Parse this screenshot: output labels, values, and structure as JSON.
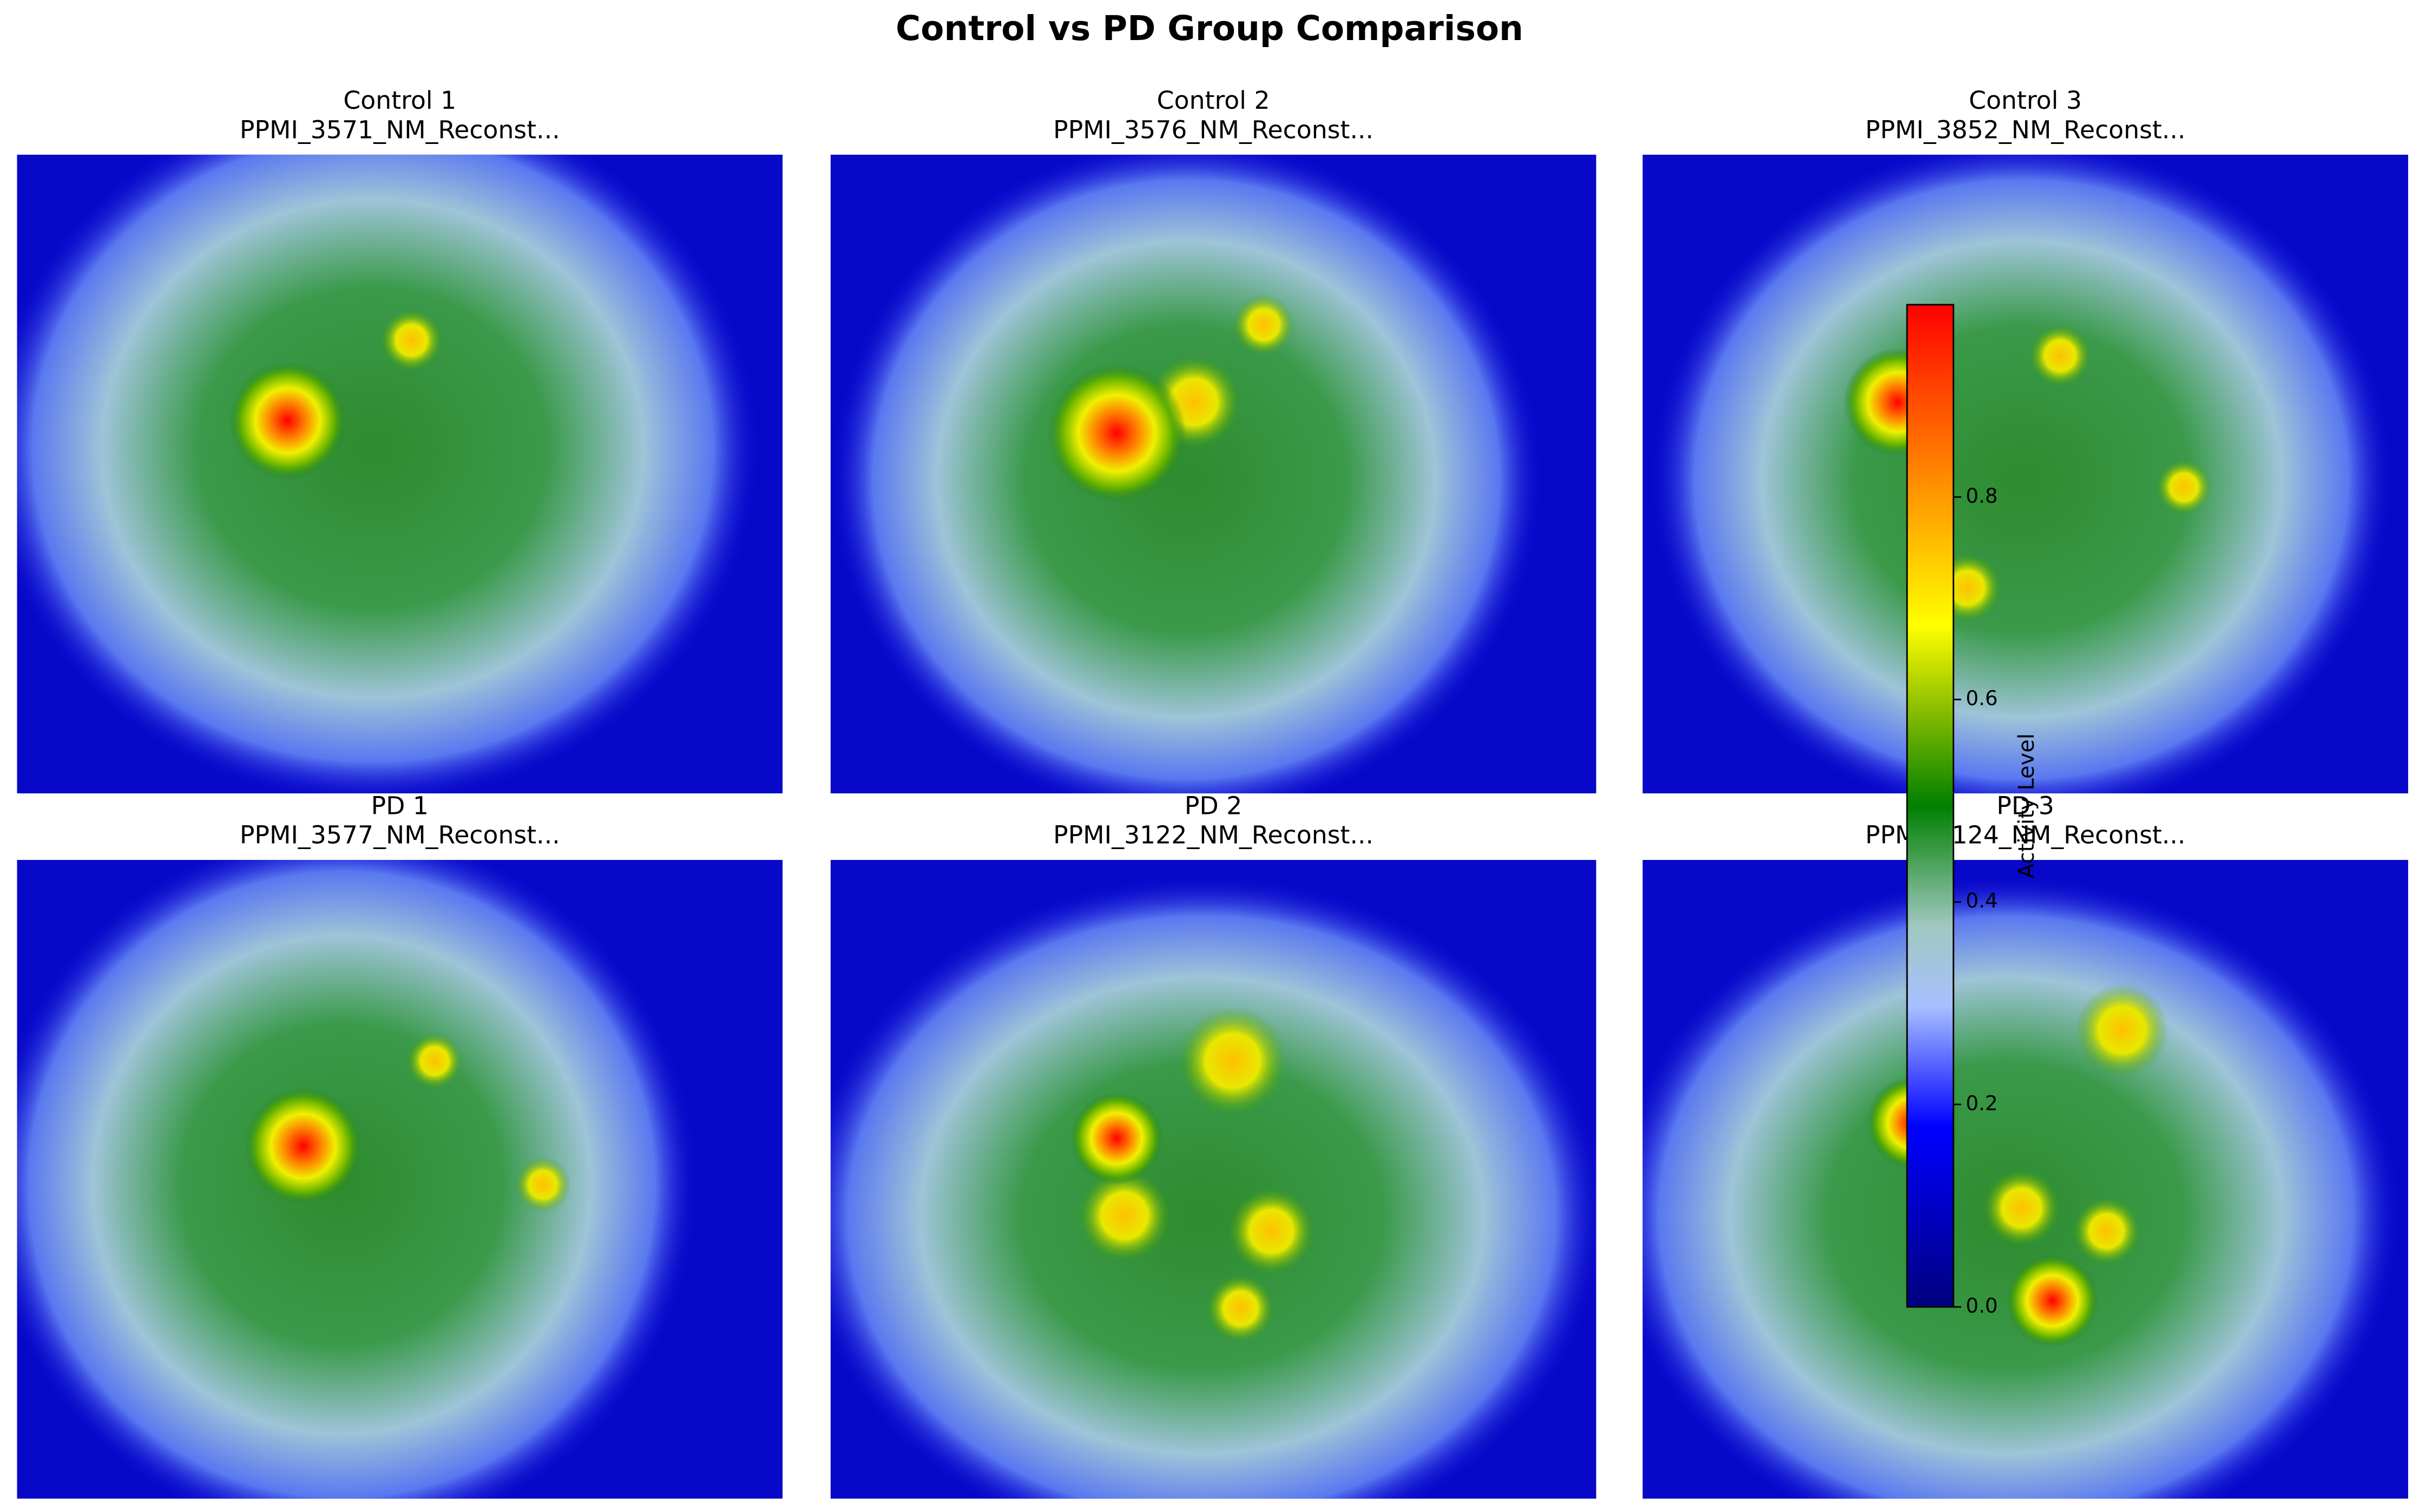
{
  "chart_data": {
    "type": "image-grid",
    "title": "Control vs PD Group Comparison",
    "panels": [
      {
        "title": "Control 1",
        "subtitle": "PPMI_3571_NM_Reconst..."
      },
      {
        "title": "Control 2",
        "subtitle": "PPMI_3576_NM_Reconst..."
      },
      {
        "title": "Control 3",
        "subtitle": "PPMI_3852_NM_Reconst..."
      },
      {
        "title": "PD 1",
        "subtitle": "PPMI_3577_NM_Reconst..."
      },
      {
        "title": "PD 2",
        "subtitle": "PPMI_3122_NM_Reconst..."
      },
      {
        "title": "PD 3",
        "subtitle": "PPMI_3124_NM_Reconst..."
      }
    ],
    "colorbar": {
      "label": "Activity Level",
      "lim": [
        0,
        0.99
      ],
      "ticks": [
        {
          "value": 0,
          "label": "0.0"
        },
        0.2,
        0.4,
        0.6,
        0.8
      ]
    }
  }
}
